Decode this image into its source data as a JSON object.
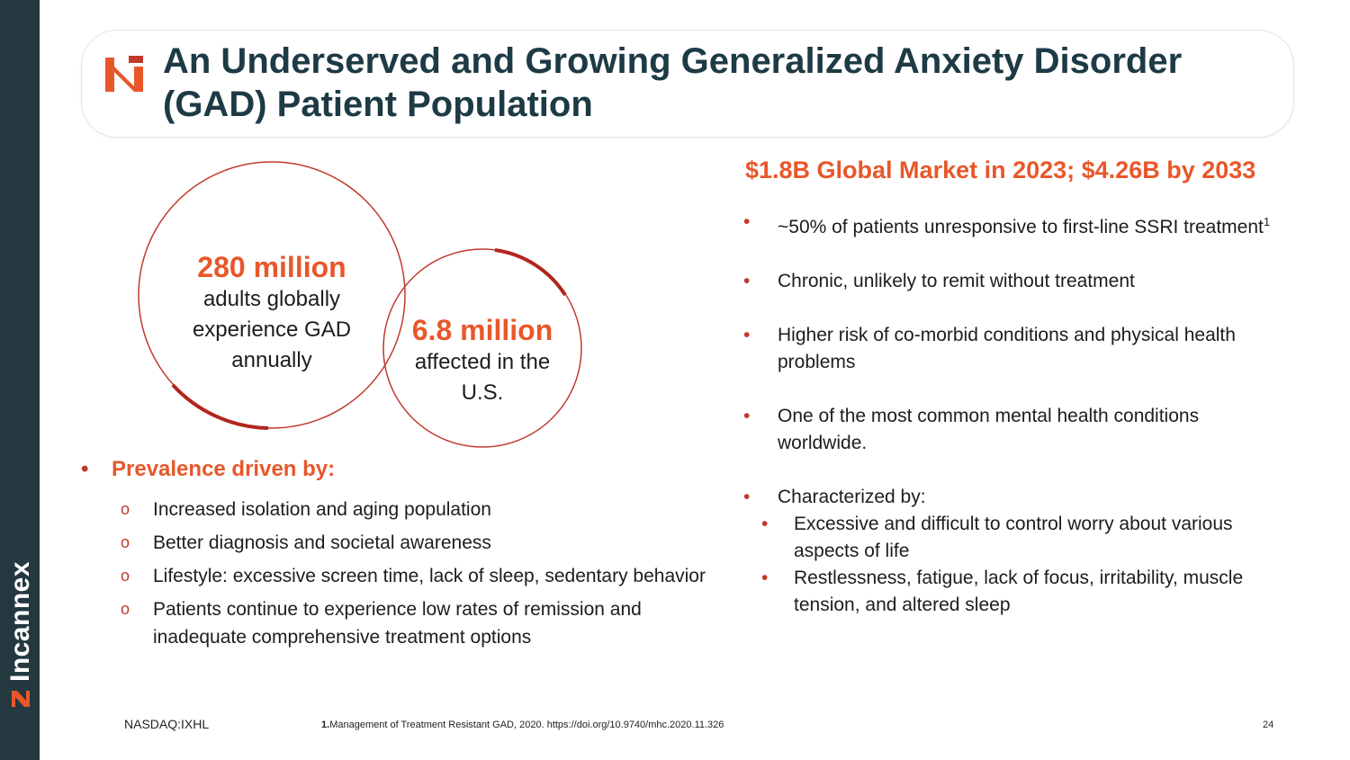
{
  "brand": {
    "name": "Incannex",
    "logo_icon": "incannex-logo-icon"
  },
  "title": "An Underserved and Growing Generalized Anxiety Disorder (GAD) Patient Population",
  "circles": {
    "global": {
      "value": "280 million",
      "line1": "adults globally",
      "line2": "experience GAD",
      "line3": "annually"
    },
    "us": {
      "value": "6.8 million",
      "line1": "affected in the",
      "line2": "U.S."
    }
  },
  "prevalence": {
    "heading": "Prevalence driven by:",
    "items": [
      "Increased isolation and aging population",
      "Better diagnosis and societal awareness",
      "Lifestyle: excessive screen time, lack of sleep, sedentary behavior",
      "Patients continue to experience low rates of remission and inadequate comprehensive treatment options"
    ]
  },
  "market": {
    "heading": "$1.8B Global Market in 2023; $4.26B by 2033",
    "items": [
      {
        "text": "~50% of patients unresponsive to first-line SSRI treatment",
        "sup": "1"
      },
      {
        "text": "Chronic, unlikely to remit without treatment"
      },
      {
        "text": "Higher risk of co-morbid conditions and physical health problems"
      },
      {
        "text": "One of the most common mental health conditions worldwide."
      }
    ],
    "characterized": {
      "label": "Characterized by:",
      "subs": [
        "Excessive and difficult to control worry about various aspects of life",
        "Restlessness, fatigue, lack of focus, irritability, muscle tension, and altered sleep"
      ]
    }
  },
  "footer": {
    "ticker": "NASDAQ:IXHL",
    "ref_num": "1.",
    "ref_text": "Management of Treatment Resistant GAD, 2020. https://doi.org/10.9740/mhc.2020.11.326",
    "page": "24"
  },
  "colors": {
    "accent": "#e8572a",
    "dark": "#24383f",
    "title": "#1d3a45",
    "circle": "#c0392b"
  }
}
